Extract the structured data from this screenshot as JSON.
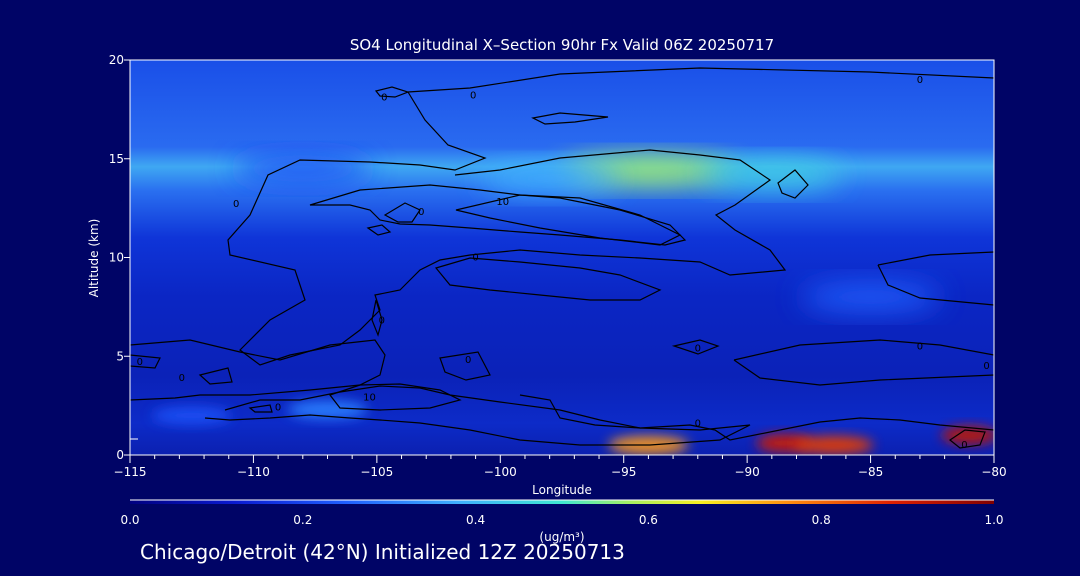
{
  "chart_data": {
    "type": "heatmap",
    "title": "SO4 Longitudinal X–Section 90hr  Fx Valid 06Z 20250717",
    "xlabel": "Longitude",
    "ylabel": "Altitude (km)",
    "xlim": [
      -115,
      -80
    ],
    "ylim": [
      0,
      20
    ],
    "x_ticks": [
      -115,
      -110,
      -105,
      -100,
      -95,
      -90,
      -85,
      -80
    ],
    "x_tick_labels": [
      "−115",
      "−110",
      "−105",
      "−100",
      "−95",
      "−90",
      "−85",
      "−80"
    ],
    "y_ticks": [
      0,
      5,
      10,
      15,
      20
    ],
    "y_tick_labels": [
      "0",
      "5",
      "10",
      "15",
      "20"
    ],
    "colorbar": {
      "label": "(ug/m³)",
      "range": [
        0.0,
        1.0
      ],
      "ticks": [
        0.0,
        0.2,
        0.4,
        0.6,
        0.8,
        1.0
      ],
      "tick_labels": [
        "0.0",
        "0.2",
        "0.4",
        "0.6",
        "0.8",
        "1.0"
      ]
    },
    "contour_labels": [
      {
        "text": "0",
        "lon": -110.7,
        "alt": 12.7
      },
      {
        "text": "0",
        "lon": -104.7,
        "alt": 18.1
      },
      {
        "text": "0",
        "lon": -101.1,
        "alt": 18.2
      },
      {
        "text": "0",
        "lon": -83.0,
        "alt": 19.0
      },
      {
        "text": "10",
        "lon": -99.9,
        "alt": 12.8
      },
      {
        "text": "0",
        "lon": -103.2,
        "alt": 12.3
      },
      {
        "text": "0",
        "lon": -101.0,
        "alt": 10.0
      },
      {
        "text": "0",
        "lon": -104.8,
        "alt": 6.8
      },
      {
        "text": "0",
        "lon": -114.6,
        "alt": 4.7
      },
      {
        "text": "0",
        "lon": -112.9,
        "alt": 3.9
      },
      {
        "text": "0",
        "lon": -101.3,
        "alt": 4.8
      },
      {
        "text": "0",
        "lon": -92.0,
        "alt": 5.4
      },
      {
        "text": "0",
        "lon": -83.0,
        "alt": 5.5
      },
      {
        "text": "0",
        "lon": -80.3,
        "alt": 4.5
      },
      {
        "text": "10",
        "lon": -105.3,
        "alt": 2.9
      },
      {
        "text": "0",
        "lon": -109.0,
        "alt": 2.4
      },
      {
        "text": "0",
        "lon": -92.0,
        "alt": 1.6
      },
      {
        "text": "0",
        "lon": -81.2,
        "alt": 0.5
      }
    ],
    "regions": [
      {
        "lon": -94.0,
        "alt": 14.4,
        "value": 0.58
      },
      {
        "lon": -98.0,
        "alt": 14.0,
        "value": 0.38
      },
      {
        "lon": -89.0,
        "alt": 14.2,
        "value": 0.45
      },
      {
        "lon": -108.0,
        "alt": 14.5,
        "value": 0.22
      },
      {
        "lon": -94.0,
        "alt": 0.5,
        "value": 0.75
      },
      {
        "lon": -88.5,
        "alt": 0.6,
        "value": 0.9
      },
      {
        "lon": -86.5,
        "alt": 0.5,
        "value": 0.85
      },
      {
        "lon": -81.0,
        "alt": 1.0,
        "value": 0.92
      },
      {
        "lon": -107.0,
        "alt": 2.3,
        "value": 0.3
      },
      {
        "lon": -112.5,
        "alt": 2.0,
        "value": 0.22
      },
      {
        "lon": -85.0,
        "alt": 8.0,
        "value": 0.25
      }
    ]
  },
  "footer": {
    "caption": "Chicago/Detroit (42°N) Initialized 12Z 20250713"
  }
}
